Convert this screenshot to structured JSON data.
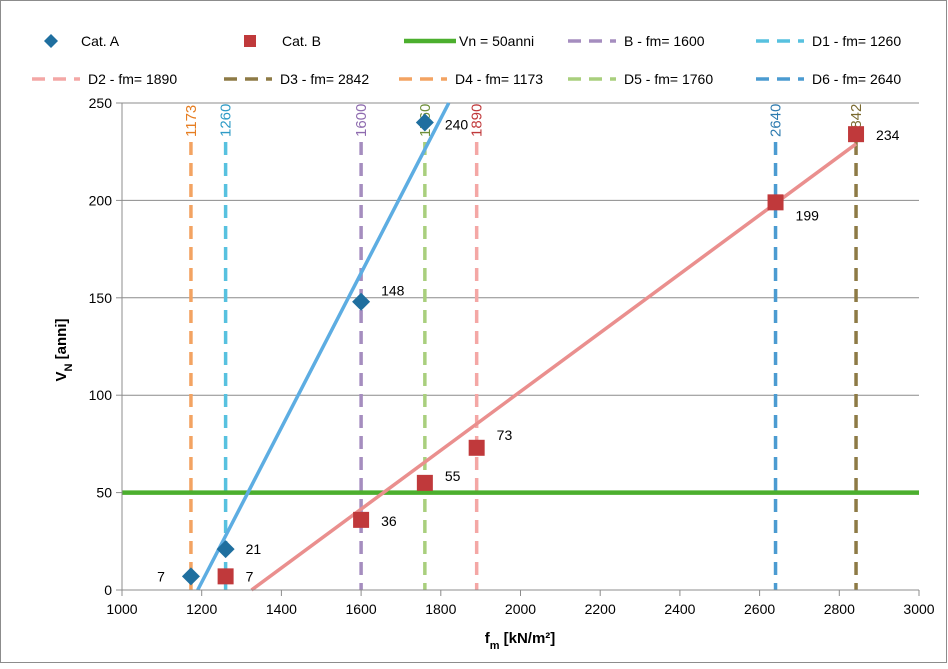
{
  "chart_data": {
    "type": "scatter",
    "xlabel": "f",
    "xlabel_sub": "m",
    "xlabel_unit": " [kN/m²]",
    "ylabel": "V",
    "ylabel_sub": "N",
    "ylabel_unit": " [anni]",
    "xlim": [
      1000,
      3000
    ],
    "ylim": [
      0,
      250
    ],
    "x_ticks": [
      1000,
      1200,
      1400,
      1600,
      1800,
      2000,
      2200,
      2400,
      2600,
      2800,
      3000
    ],
    "y_ticks": [
      0,
      50,
      100,
      150,
      200,
      250
    ],
    "grid": "horizontal",
    "legend_position": "top",
    "series": [
      {
        "name": "Cat. A",
        "marker": "diamond",
        "color": "#1F6F9F",
        "points": [
          {
            "x": 1173,
            "y": 7,
            "label": "7"
          },
          {
            "x": 1260,
            "y": 21,
            "label": "21"
          },
          {
            "x": 1600,
            "y": 148,
            "label": "148"
          },
          {
            "x": 1760,
            "y": 240,
            "label": "240"
          }
        ]
      },
      {
        "name": "Cat. B",
        "marker": "square",
        "color": "#C0393B",
        "points": [
          {
            "x": 1260,
            "y": 7,
            "label": "7"
          },
          {
            "x": 1600,
            "y": 36,
            "label": "36"
          },
          {
            "x": 1760,
            "y": 55,
            "label": "55"
          },
          {
            "x": 1890,
            "y": 73,
            "label": "73"
          },
          {
            "x": 2640,
            "y": 199,
            "label": "199"
          },
          {
            "x": 2842,
            "y": 234,
            "label": "234"
          }
        ]
      }
    ],
    "trendlines": [
      {
        "name": "Cat. A trend",
        "color": "#5DADE2",
        "from": [
          1190,
          0
        ],
        "to": [
          1820,
          250
        ]
      },
      {
        "name": "Cat. B trend",
        "color": "#EA8F8E",
        "from": [
          1325,
          0
        ],
        "to": [
          2842,
          229
        ]
      }
    ],
    "horizontal_lines": [
      {
        "name": "Vn = 50anni",
        "y": 50,
        "color": "#4CAF2E"
      }
    ],
    "vertical_lines": [
      {
        "name": "B - fm= 1600",
        "x": 1600,
        "label": "1600",
        "color": "#A58DBF"
      },
      {
        "name": "D1 - fm= 1260",
        "x": 1260,
        "label": "1260",
        "color": "#57C1DF"
      },
      {
        "name": "D2 - fm= 1890",
        "x": 1890,
        "label": "1890",
        "color": "#F4A7A5"
      },
      {
        "name": "D3 - fm= 2842",
        "x": 2842,
        "label": "2842",
        "color": "#8D7A45"
      },
      {
        "name": "D4 - fm= 1173",
        "x": 1173,
        "label": "1173",
        "color": "#F3A362"
      },
      {
        "name": "D5 - fm= 1760",
        "x": 1760,
        "label": "1760",
        "color": "#A9CF7D"
      },
      {
        "name": "D6 - fm= 2640",
        "x": 2640,
        "label": "2640",
        "color": "#4B9BD1"
      }
    ],
    "vline_label_colors": {
      "1173": "#E67E22",
      "1260": "#2E9BC6",
      "1600": "#8E6BAF",
      "1760": "#6E8F3A",
      "1890": "#C0393B",
      "2640": "#2E7BAF",
      "2842": "#7A6A30"
    },
    "legend_order": [
      "Cat. A",
      "Cat. B",
      "Vn = 50anni",
      "B - fm= 1600",
      "D1 - fm= 1260",
      "D2 - fm= 1890",
      "D3 - fm= 2842",
      "D4 - fm= 1173",
      "D5 - fm= 1760",
      "D6 - fm= 2640"
    ]
  }
}
